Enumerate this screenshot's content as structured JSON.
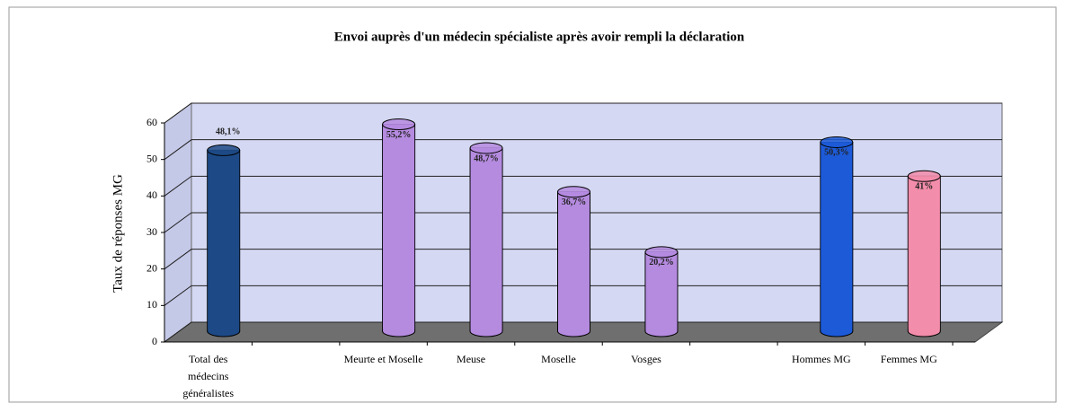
{
  "chart_data": {
    "type": "bar3d",
    "title": "Envoi auprès d'un médecin spécialiste après avoir rempli la déclaration",
    "y_label": "Taux de réponses MG",
    "categories": [
      "Total des médecins généralistes",
      null,
      "Meurte et Moselle",
      "Meuse",
      "Moselle",
      "Vosges",
      null,
      "Hommes MG",
      "Femmes MG"
    ],
    "values": [
      48.1,
      null,
      55.2,
      48.7,
      36.7,
      20.2,
      null,
      50.3,
      41
    ],
    "value_labels": [
      "48,1%",
      null,
      "55,2%",
      "48,7%",
      "36,7%",
      "20,2%",
      null,
      "50,3%",
      "41%"
    ],
    "colors": [
      "#1d4a86",
      null,
      "#b58be0",
      "#b58be0",
      "#b58be0",
      "#b58be0",
      null,
      "#1c5ad8",
      "#f28dab"
    ],
    "ylim": [
      0,
      60
    ],
    "yticks": [
      0,
      10,
      20,
      30,
      40,
      50,
      60
    ],
    "grid": true
  }
}
